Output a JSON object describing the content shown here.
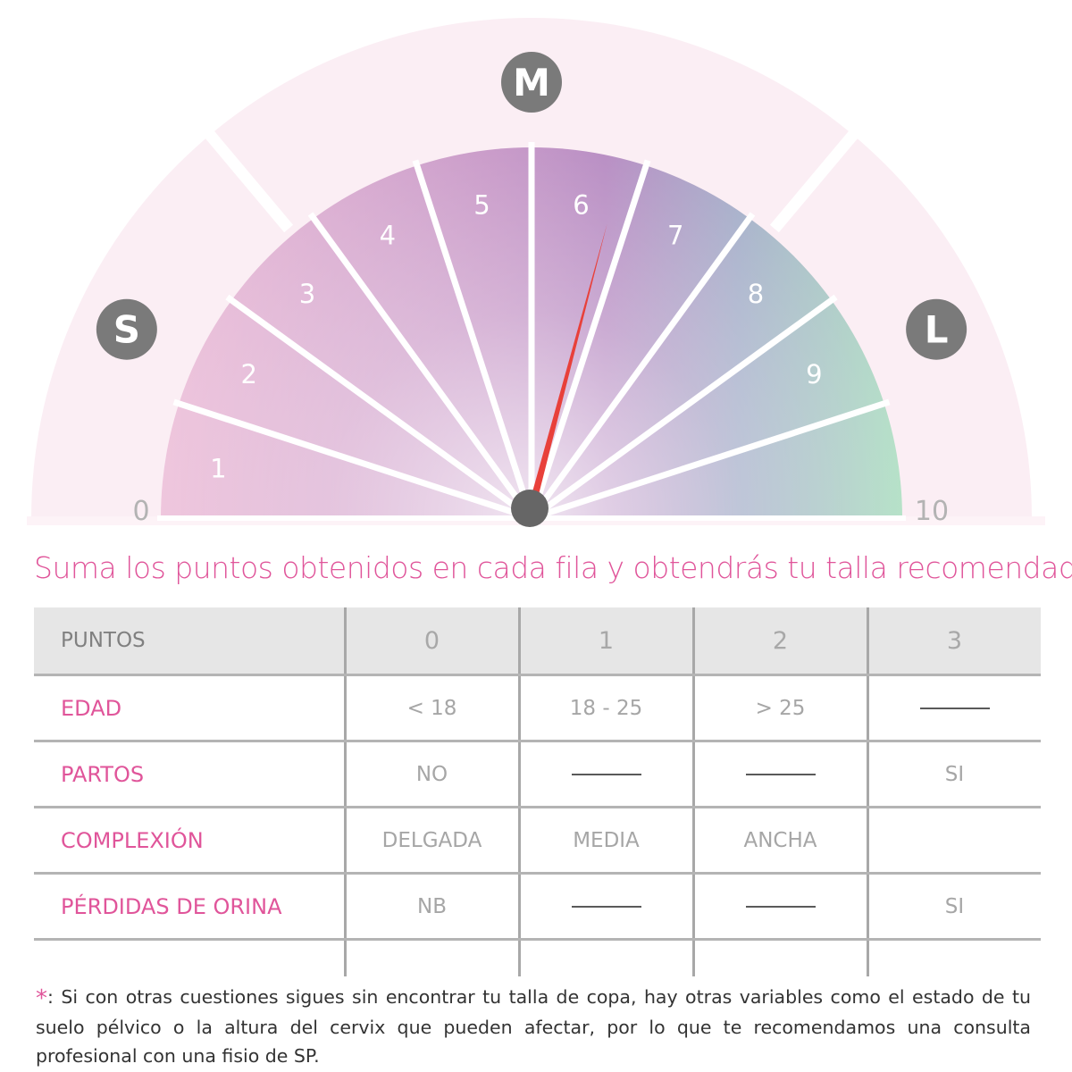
{
  "gauge": {
    "size_labels": [
      {
        "letter": "S",
        "color": "#7a7a7a"
      },
      {
        "letter": "M",
        "color": "#7a7a7a"
      },
      {
        "letter": "L",
        "color": "#7a7a7a"
      }
    ],
    "scale_min": "0",
    "scale_max": "10",
    "segment_labels": [
      "1",
      "2",
      "3",
      "4",
      "5",
      "6",
      "7",
      "8",
      "9"
    ],
    "needle_value": 5.8,
    "needle_color": "#e8403a",
    "outer_band_color": "#fbeef4",
    "hub_color": "#666666"
  },
  "headline": "Suma los puntos obtenidos en cada fila y obtendrás tu talla recomendada:",
  "table": {
    "header": [
      "PUNTOS",
      "0",
      "1",
      "2",
      "3"
    ],
    "rows": [
      {
        "label": "EDAD",
        "cells": [
          "< 18",
          "18 - 25",
          "> 25",
          "—"
        ]
      },
      {
        "label": "PARTOS",
        "cells": [
          "NO",
          "—",
          "—",
          "SI"
        ]
      },
      {
        "label": "COMPLEXIÓN",
        "cells": [
          "DELGADA",
          "MEDIA",
          "ANCHA",
          ""
        ]
      },
      {
        "label": "PÉRDIDAS DE ORINA",
        "cells": [
          "NB",
          "—",
          "—",
          "SI"
        ]
      }
    ]
  },
  "footnote": {
    "marker": "*",
    "text": ": Si con otras cuestiones sigues sin encontrar tu talla de copa, hay otras variables como el estado de tu suelo pélvico o la altura del cervix que pueden afectar, por lo que te recomendamos una consulta profesional con una fisio de SP."
  }
}
